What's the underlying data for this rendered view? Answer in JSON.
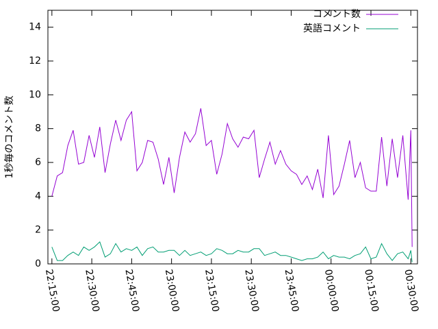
{
  "chart_data": {
    "type": "line",
    "ylabel": "1秒毎のコメント数",
    "x": [
      "22:15:00",
      "22:17:00",
      "22:19:00",
      "22:21:00",
      "22:23:00",
      "22:25:00",
      "22:27:00",
      "22:29:00",
      "22:31:00",
      "22:33:00",
      "22:35:00",
      "22:37:00",
      "22:39:00",
      "22:41:00",
      "22:43:00",
      "22:45:00",
      "22:47:00",
      "22:49:00",
      "22:51:00",
      "22:53:00",
      "22:55:00",
      "22:57:00",
      "22:59:00",
      "23:01:00",
      "23:03:00",
      "23:05:00",
      "23:07:00",
      "23:09:00",
      "23:11:00",
      "23:13:00",
      "23:15:00",
      "23:17:00",
      "23:19:00",
      "23:21:00",
      "23:23:00",
      "23:25:00",
      "23:27:00",
      "23:29:00",
      "23:31:00",
      "23:33:00",
      "23:35:00",
      "23:37:00",
      "23:39:00",
      "23:41:00",
      "23:43:00",
      "23:45:00",
      "23:47:00",
      "23:49:00",
      "23:51:00",
      "23:53:00",
      "23:55:00",
      "23:57:00",
      "23:59:00",
      "00:01:00",
      "00:03:00",
      "00:05:00",
      "00:07:00",
      "00:09:00",
      "00:11:00",
      "00:13:00",
      "00:15:00",
      "00:17:00",
      "00:19:00",
      "00:21:00",
      "00:23:00",
      "00:25:00",
      "00:27:00",
      "00:29:00",
      "00:30:00",
      "00:30:30"
    ],
    "series": [
      {
        "name": "コメント数",
        "color": "#9400d3",
        "values": [
          4.0,
          5.2,
          5.4,
          7.0,
          7.9,
          5.9,
          6.0,
          7.6,
          6.3,
          8.1,
          5.4,
          7.1,
          8.5,
          7.3,
          8.5,
          9.0,
          5.5,
          6.0,
          7.3,
          7.2,
          6.2,
          4.7,
          6.3,
          4.2,
          6.3,
          7.8,
          7.2,
          7.7,
          9.2,
          7.0,
          7.3,
          5.3,
          6.5,
          8.3,
          7.4,
          6.9,
          7.5,
          7.4,
          7.9,
          5.1,
          6.2,
          7.2,
          5.9,
          6.7,
          5.9,
          5.5,
          5.3,
          4.7,
          5.2,
          4.4,
          5.6,
          3.9,
          7.6,
          4.1,
          4.6,
          5.9,
          7.3,
          5.1,
          6.0,
          4.5,
          4.3,
          4.3,
          7.5,
          4.6,
          7.4,
          5.1,
          7.6,
          3.8,
          7.9,
          1.0
        ]
      },
      {
        "name": "英語コメント",
        "color": "#009e73",
        "values": [
          1.0,
          0.2,
          0.2,
          0.5,
          0.7,
          0.5,
          1.0,
          0.8,
          1.0,
          1.3,
          0.4,
          0.6,
          1.2,
          0.7,
          0.9,
          0.8,
          1.0,
          0.5,
          0.9,
          1.0,
          0.7,
          0.7,
          0.8,
          0.8,
          0.5,
          0.8,
          0.5,
          0.6,
          0.7,
          0.5,
          0.6,
          0.9,
          0.8,
          0.6,
          0.6,
          0.8,
          0.7,
          0.7,
          0.9,
          0.9,
          0.5,
          0.6,
          0.7,
          0.5,
          0.5,
          0.4,
          0.3,
          0.2,
          0.3,
          0.3,
          0.4,
          0.7,
          0.3,
          0.5,
          0.4,
          0.4,
          0.3,
          0.5,
          0.6,
          1.0,
          0.3,
          0.4,
          1.2,
          0.6,
          0.2,
          0.6,
          0.7,
          0.3,
          0.8,
          0.1
        ]
      }
    ],
    "xlim": [
      "22:13:30",
      "00:32:30"
    ],
    "xticks": [
      "22:15:00",
      "22:30:00",
      "22:45:00",
      "23:00:00",
      "23:15:00",
      "23:30:00",
      "23:45:00",
      "00:00:00",
      "00:15:00",
      "00:30:00"
    ],
    "ylim": [
      0,
      15
    ],
    "yticks": [
      0,
      2,
      4,
      6,
      8,
      10,
      12,
      14
    ],
    "legend": "top-right"
  }
}
